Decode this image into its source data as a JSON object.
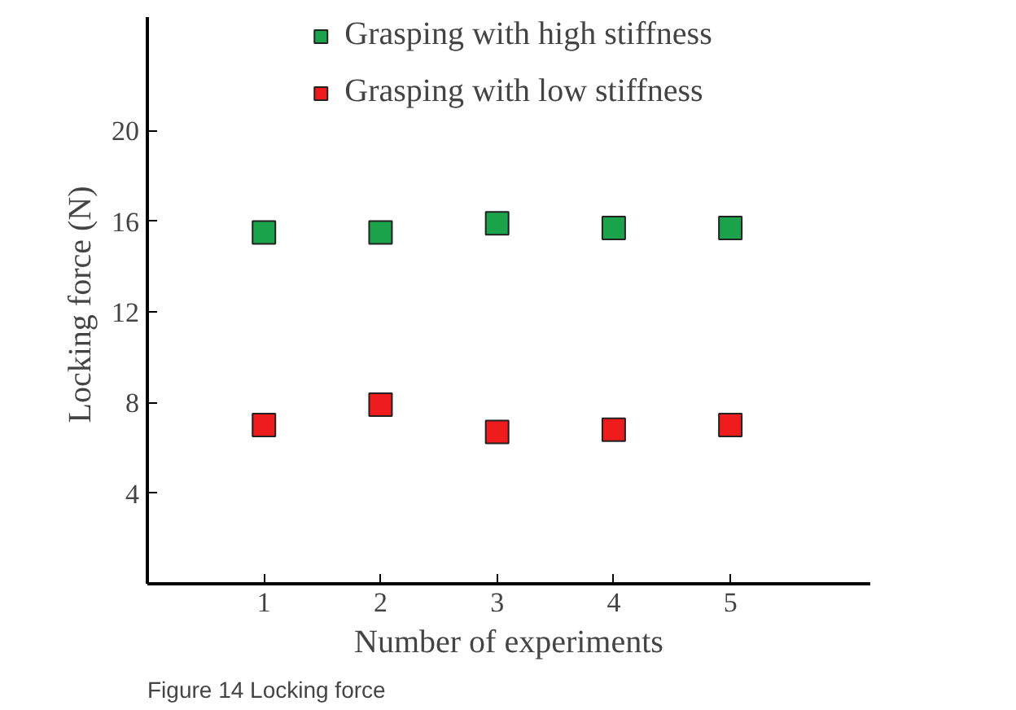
{
  "chart_data": {
    "type": "scatter",
    "xlabel": "Number of experiments",
    "ylabel": "Locking force  (N)",
    "x": [
      1,
      2,
      3,
      4,
      5
    ],
    "series": [
      {
        "name": "Grasping with high stiffness",
        "color": "#1aa34a",
        "values": [
          15.5,
          15.5,
          15.9,
          15.7,
          15.7
        ]
      },
      {
        "name": "Grasping with low stiffness",
        "color": "#ee1c1c",
        "values": [
          7.0,
          7.9,
          6.7,
          6.8,
          7.0
        ]
      }
    ],
    "xlim": [
      0,
      6.2
    ],
    "xticks": [
      1,
      2,
      3,
      4,
      5
    ],
    "ylim": [
      0,
      25
    ],
    "yticks": [
      4,
      8,
      12,
      16,
      20
    ],
    "grid": false,
    "legend": "top",
    "marker": "square",
    "annotations": [
      "Figure 14  Locking force"
    ]
  }
}
